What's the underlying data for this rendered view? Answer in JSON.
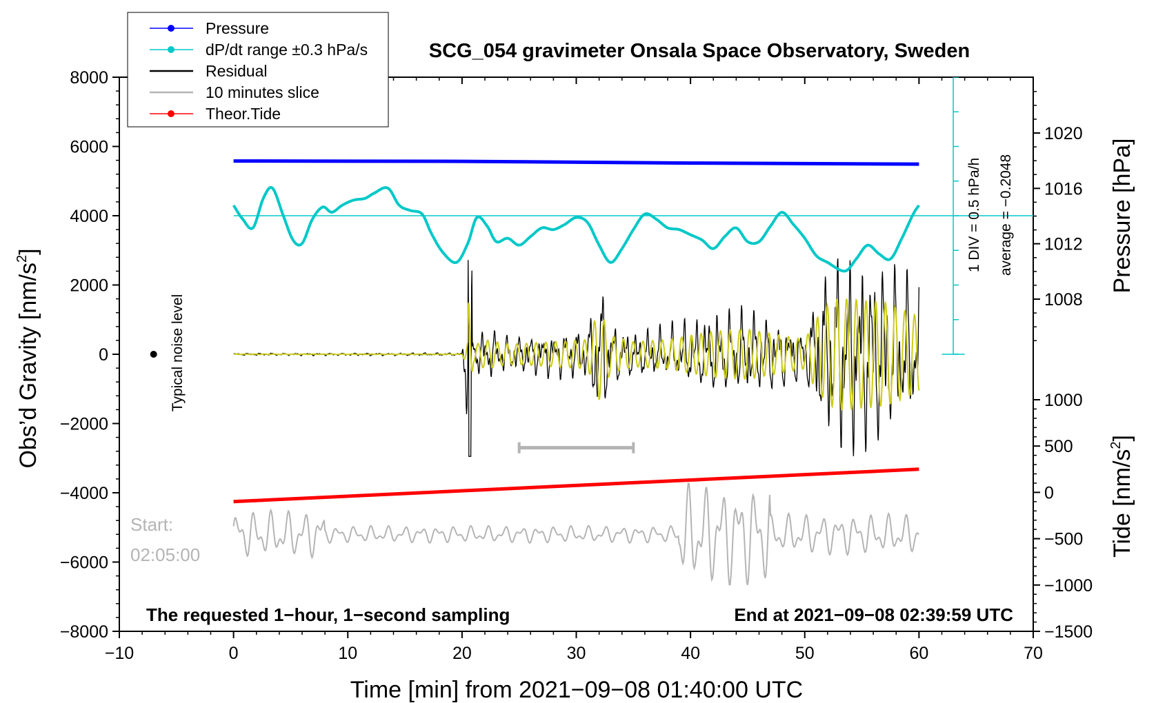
{
  "chart_data": {
    "type": "line",
    "title": "SCG_054 gravimeter Onsala Space Observatory, Sweden",
    "xlabel": "Time [min] from 2021−09−08 01:40:00 UTC",
    "ylabel_left": "Obs’d Gravity [nm/s²]",
    "ylabel_left_main": "Obs’d Gravity [nm/s",
    "ylabel_right_top": "Pressure [hPa]",
    "ylabel_right_bottom": "Tide [nm/s²]",
    "ylabel_right_bottom_main": "Tide [nm/s",
    "superscript": "2",
    "xlim": [
      -10,
      70
    ],
    "ylim_left": [
      -8000,
      8000
    ],
    "x_ticks": [
      -10,
      0,
      10,
      20,
      30,
      40,
      50,
      60,
      70
    ],
    "x_tick_labels": [
      "−10",
      "0",
      "10",
      "20",
      "30",
      "40",
      "50",
      "60",
      "70"
    ],
    "y_left_ticks": [
      8000,
      6000,
      4000,
      2000,
      0,
      -2000,
      -4000,
      -6000,
      -8000
    ],
    "y_left_tick_labels": [
      "8000",
      "6000",
      "4000",
      "2000",
      "0",
      "−2000",
      "−4000",
      "−6000",
      "−8000"
    ],
    "pressure_axis": {
      "range_hpa": [
        1004,
        1024
      ],
      "ticks": [
        1020,
        1016,
        1012,
        1008
      ],
      "tick_labels": [
        "1020",
        "1016",
        "1012",
        "1008"
      ]
    },
    "tide_axis": {
      "range": [
        -1500,
        1000
      ],
      "ticks": [
        1000,
        500,
        0,
        -500,
        -1000,
        -1500
      ],
      "tick_labels": [
        "1000",
        "500",
        "0",
        "−500",
        "−1000",
        "−1500"
      ]
    },
    "legend": [
      {
        "label": "Pressure",
        "color": "#0000ff",
        "marker": true
      },
      {
        "label": "dP/dt range ±0.3 hPa/s",
        "color": "#00c8c8",
        "marker": true
      },
      {
        "label": "Residual",
        "color": "#000000",
        "marker": false
      },
      {
        "label": "10 minutes slice",
        "color": "#b4b4b4",
        "marker": false
      },
      {
        "label": "Theor.Tide",
        "color": "#ff0000",
        "marker": true
      }
    ],
    "annotations": {
      "typical_noise": "Typical noise level",
      "div_label": "1 DIV = 0.5 hPa/h",
      "average_label": "average = −0.2048",
      "start_label": "Start:",
      "start_time": "02:05:00",
      "bottom_left": "The requested 1−hour, 1−second sampling",
      "bottom_right": "End at 2021−09−08 02:39:59 UTC"
    },
    "series": [
      {
        "name": "Pressure",
        "color": "#0000ff",
        "x": [
          0,
          20,
          40,
          60
        ],
        "y_nm": [
          5580,
          5570,
          5520,
          5490
        ]
      },
      {
        "name": "dP/dt range ±0.3 hPa/s",
        "color": "#00c8c8",
        "baseline_nm": 4000,
        "x": [
          0,
          0.8,
          1.7,
          2.6,
          3.4,
          4.3,
          5.2,
          6.0,
          6.9,
          7.8,
          8.6,
          9.5,
          10.5,
          11.5,
          12.3,
          13.5,
          14.5,
          15.5,
          16.5,
          17.3,
          18.3,
          19.5,
          20.5,
          21.3,
          22.2,
          23.0,
          24.0,
          25.0,
          26.0,
          27.0,
          28.0,
          29.0,
          30.0,
          31.0,
          32.0,
          33.0,
          34.0,
          35.0,
          36.0,
          37.0,
          38.0,
          39.0,
          40.0,
          41.0,
          42.0,
          43.0,
          44.0,
          45.0,
          46.0,
          47.0,
          48.0,
          49.0,
          50.0,
          51.0,
          52.0,
          53.5,
          54.5,
          55.5,
          56.5,
          57.5,
          58.5,
          59.5,
          60.0
        ],
        "y_nm": [
          4300,
          3900,
          3650,
          4500,
          4800,
          4050,
          3300,
          3200,
          3900,
          4250,
          4100,
          4300,
          4450,
          4500,
          4650,
          4800,
          4300,
          4150,
          4050,
          3500,
          2950,
          2650,
          3200,
          3950,
          3700,
          3250,
          3350,
          3150,
          3400,
          3650,
          3600,
          3750,
          3950,
          3800,
          3150,
          2650,
          3050,
          3600,
          4050,
          3900,
          3650,
          3600,
          3450,
          3300,
          3050,
          3400,
          3650,
          3250,
          3250,
          3700,
          4100,
          3750,
          3350,
          2850,
          2650,
          2400,
          2750,
          3150,
          2900,
          2750,
          3350,
          4050,
          4300
        ]
      },
      {
        "name": "Residual",
        "color": "#000000",
        "x_range": [
          0,
          60
        ],
        "peak_nm": [
          2800,
          -2950
        ]
      },
      {
        "name": "10 minutes slice",
        "color": "#b4b4b4",
        "x_range": [
          0,
          60
        ],
        "slice_minutes": [
          25,
          35
        ]
      },
      {
        "name": "Theor.Tide",
        "color": "#ff0000",
        "x": [
          0,
          60
        ],
        "y_tide": [
          -100,
          250
        ]
      }
    ]
  }
}
